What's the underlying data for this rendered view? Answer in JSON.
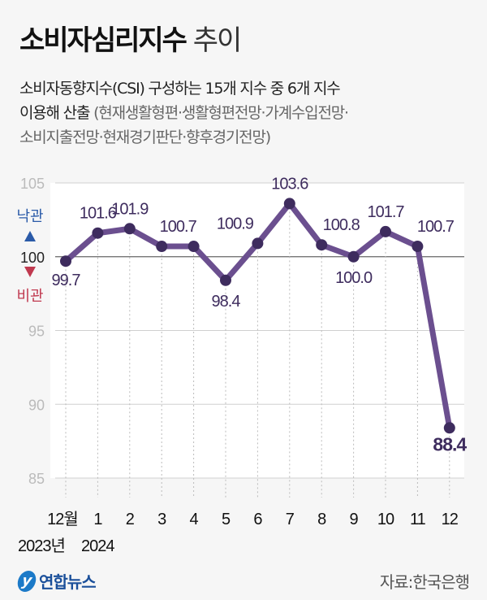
{
  "title": {
    "bold": "소비자심리지수",
    "light": "추이"
  },
  "subtitle": {
    "line1": "소비자동향지수(CSI) 구성하는 15개 지수 중 6개 지수",
    "line2_dark": "이용해 산출",
    "line2_gray": "(현재생활형편·생활형편전망·가계수입전망·",
    "line3": "소비지출전망·현재경기판단·향후경기전망)"
  },
  "chart_data": {
    "type": "line",
    "categories": [
      "12월",
      "1",
      "2",
      "3",
      "4",
      "5",
      "6",
      "7",
      "8",
      "9",
      "10",
      "11",
      "12"
    ],
    "year_labels": [
      "2023년",
      "2024"
    ],
    "values": [
      99.7,
      101.6,
      101.9,
      100.7,
      100.7,
      98.4,
      100.9,
      103.6,
      100.8,
      100.0,
      101.7,
      100.7,
      88.4
    ],
    "data_labels": [
      "99.7",
      "101.6",
      "101.9",
      "100.7",
      "",
      "98.4",
      "100.9",
      "103.6",
      "100.8",
      "100.0",
      "101.7",
      "100.7",
      "88.4"
    ],
    "yticks": [
      "105",
      "100",
      "95",
      "90",
      "85"
    ],
    "ylim": [
      85,
      105
    ],
    "reference_line": 100,
    "optimism_label": "낙관",
    "pessimism_label": "비관",
    "colors": {
      "line": "#6b4f8f",
      "point": "#3e2c5e",
      "label": "#3e2c5e",
      "up": "#2a5aa8",
      "down": "#c0394f"
    }
  },
  "footer": {
    "source": "자료:한국은행",
    "logo": "연합뉴스",
    "logo_mark": "y"
  }
}
